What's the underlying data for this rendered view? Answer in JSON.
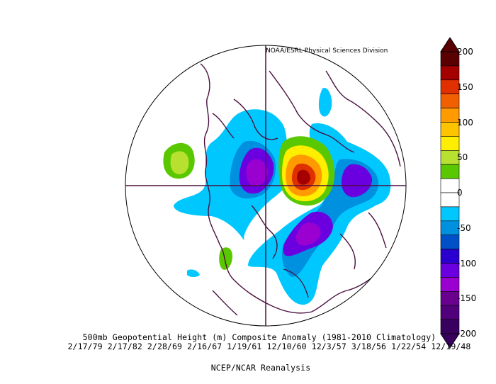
{
  "credit": "NOAA/ESRL Physical Sciences Division",
  "title_line": "500mb Geopotential Height (m) Composite Anomaly (1981-2010 Climatology)",
  "dates_line": "2/17/79 2/17/82 2/28/69 2/16/67 1/19/61 12/10/60 12/3/57 3/18/56 1/22/54 12/19/48",
  "source_line": "NCEP/NCAR Reanalysis",
  "colorbar": {
    "labels": [
      "200",
      "150",
      "100",
      "50",
      "0",
      "-50",
      "-100",
      "-150",
      "-200"
    ],
    "colors": [
      "#5a0000",
      "#a40000",
      "#e03000",
      "#f06000",
      "#ff9a00",
      "#ffc400",
      "#ffee00",
      "#b8e030",
      "#5ac800",
      "#ffffff",
      "#ffffff",
      "#00c8ff",
      "#0090e0",
      "#0050c8",
      "#2a00d0",
      "#6a00e0",
      "#9a00d0",
      "#6a0090",
      "#50007a",
      "#3a0060"
    ]
  }
}
